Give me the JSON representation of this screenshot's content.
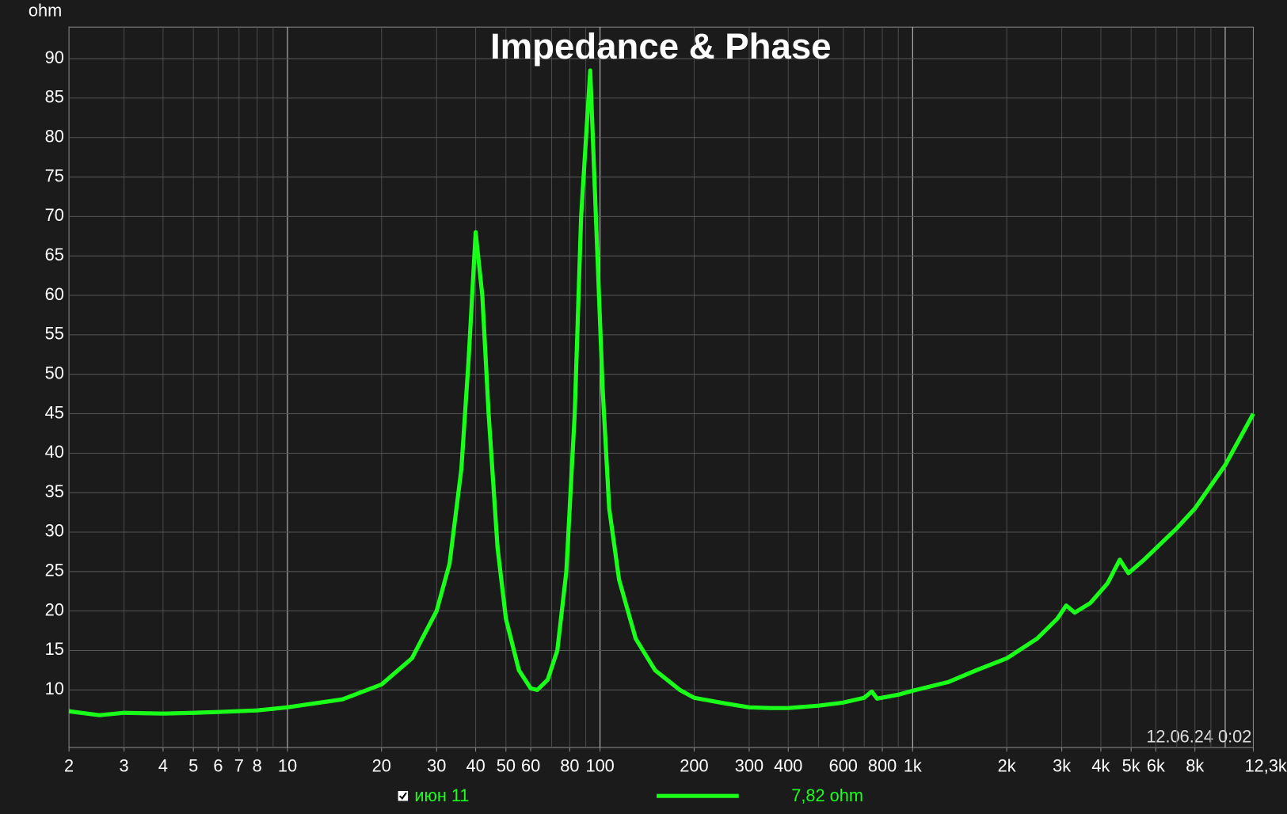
{
  "chart_data": {
    "type": "line",
    "title": "Impedance & Phase",
    "y_label": "ohm",
    "x_scale": "log",
    "grid": true,
    "xlim": [
      2,
      12300
    ],
    "ylim": [
      2.7,
      94
    ],
    "yticks": [
      10,
      15,
      20,
      25,
      30,
      35,
      40,
      45,
      50,
      55,
      60,
      65,
      70,
      75,
      80,
      85,
      90
    ],
    "xticks": [
      2,
      3,
      4,
      5,
      6,
      7,
      8,
      10,
      20,
      30,
      40,
      50,
      60,
      80,
      100,
      200,
      300,
      400,
      600,
      800,
      {
        "value": 1000,
        "label": "1k"
      },
      {
        "value": 2000,
        "label": "2k"
      },
      {
        "value": 3000,
        "label": "3k"
      },
      {
        "value": 4000,
        "label": "4k"
      },
      {
        "value": 5000,
        "label": "5k"
      },
      {
        "value": 6000,
        "label": "6k"
      },
      {
        "value": 8000,
        "label": "8k"
      },
      {
        "value": 12300,
        "label": "12,3kHz"
      }
    ],
    "major_xgrid": [
      10,
      100,
      1000,
      10000
    ],
    "minor_xgrid": [
      3,
      4,
      5,
      6,
      7,
      8,
      9,
      20,
      30,
      40,
      50,
      60,
      70,
      80,
      90,
      200,
      300,
      400,
      500,
      600,
      700,
      800,
      900,
      2000,
      3000,
      4000,
      5000,
      6000,
      7000,
      8000,
      9000
    ],
    "timestamp": "12.06.24 0:02",
    "readout": "7,82 ohm",
    "x": [
      2,
      2.5,
      3,
      4,
      5,
      6,
      8,
      10,
      15,
      20,
      25,
      30,
      33,
      36,
      38,
      40,
      42,
      44,
      47,
      50,
      55,
      60,
      63,
      68,
      73,
      78,
      83,
      87,
      93,
      97,
      102,
      107,
      115,
      130,
      150,
      180,
      200,
      250,
      300,
      350,
      400,
      500,
      600,
      700,
      740,
      770,
      900,
      1000,
      1300,
      1600,
      2000,
      2500,
      2900,
      3100,
      3300,
      3700,
      4200,
      4600,
      4900,
      5500,
      7000,
      8000,
      10000,
      12300
    ],
    "series": [
      {
        "name": "июн 11",
        "color": "#1aff1a",
        "values": [
          7.3,
          6.8,
          7.1,
          7.0,
          7.1,
          7.2,
          7.4,
          7.8,
          8.8,
          10.7,
          14,
          20,
          26,
          38,
          52,
          68,
          60,
          45,
          28,
          19,
          12.5,
          10.2,
          10,
          11.3,
          15,
          25,
          45,
          70,
          88.5,
          70,
          48,
          33,
          24,
          16.5,
          12.5,
          10,
          9,
          8.3,
          7.8,
          7.7,
          7.7,
          8,
          8.4,
          9,
          9.8,
          8.9,
          9.4,
          9.9,
          11,
          12.5,
          14,
          16.5,
          19,
          20.7,
          19.8,
          21,
          23.5,
          26.5,
          24.8,
          26.5,
          30.5,
          33,
          38.5,
          45
        ]
      }
    ]
  }
}
